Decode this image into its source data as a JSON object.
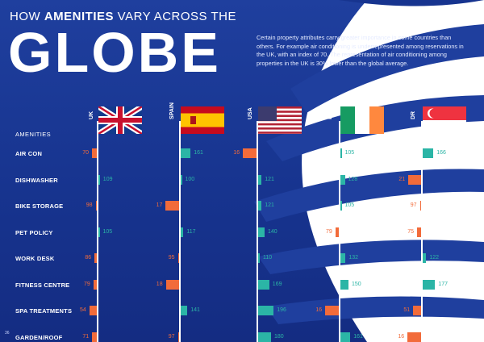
{
  "title_line1_pre": "HOW ",
  "title_line1_bold": "AMENITIES",
  "title_line1_post": " VARY ACROSS THE",
  "title_big": "GLOBE",
  "intro": "Certain property attributes carry greater importance in some countries than others. For example air conditioning is underrepresented among reservations in the UK, with an index of 70. The representation of air conditioning among properties in the UK is 30% lower than the global average.",
  "amenities_header": "AMENITIES",
  "page_number": "36",
  "colors": {
    "above": "#2bb5a6",
    "below": "#f26b3a",
    "background": "#1b3a96"
  },
  "chart_data": {
    "type": "bar",
    "baseline": 100,
    "categories": [
      "AIR CON",
      "DISHWASHER",
      "BIKE STORAGE",
      "PET POLICY",
      "WORK DESK",
      "FITNESS CENTRE",
      "SPA TREATMENTS",
      "GARDEN/ROOF"
    ],
    "series": [
      {
        "name": "UK",
        "flag": "uk",
        "values": [
          70,
          109,
          98,
          105,
          86,
          79,
          54,
          71
        ]
      },
      {
        "name": "SPAIN",
        "flag": "spain",
        "values": [
          161,
          100,
          17,
          117,
          95,
          18,
          141,
          97
        ]
      },
      {
        "name": "USA",
        "flag": "usa",
        "values": [
          16,
          121,
          121,
          140,
          110,
          169,
          196,
          180
        ]
      },
      {
        "name": "D",
        "flag": "ireland",
        "values": [
          105,
          128,
          105,
          79,
          132,
          150,
          16,
          161
        ]
      },
      {
        "name": "DR",
        "flag": "singapore",
        "values": [
          166,
          21,
          97,
          75,
          122,
          177,
          51,
          16
        ]
      }
    ]
  }
}
